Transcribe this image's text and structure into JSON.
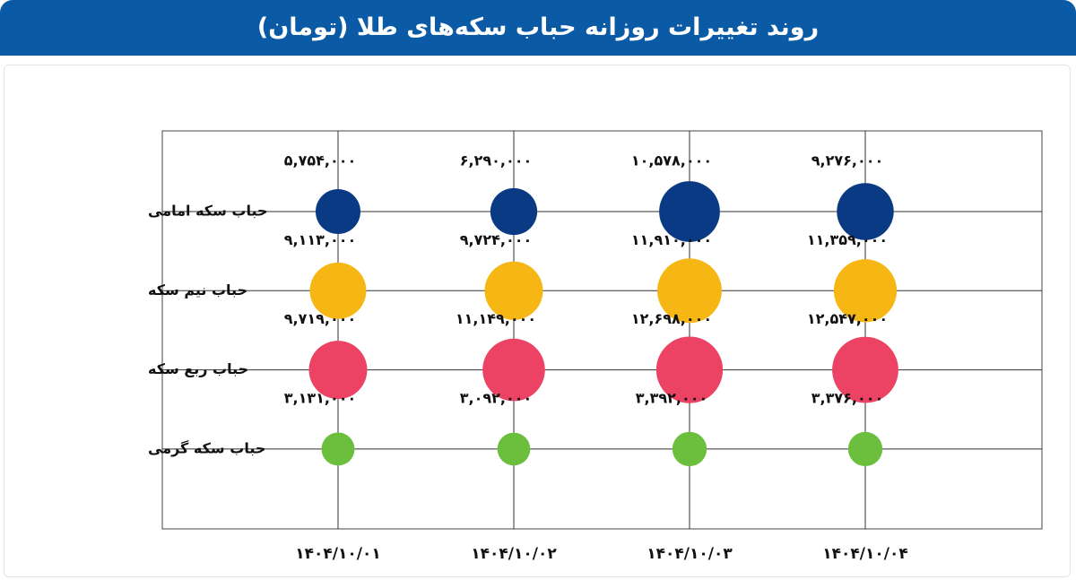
{
  "chart_data": {
    "type": "bubble",
    "title": "روند تغییرات روزانه حباب سکه‌های طلا (تومان)",
    "categories": [
      "۱۴۰۴/۱۰/۰۱",
      "۱۴۰۴/۱۰/۰۲",
      "۱۴۰۴/۱۰/۰۳",
      "۱۴۰۴/۱۰/۰۴"
    ],
    "series": [
      {
        "name": "حباب سکه امامی",
        "color": "#0b3a85",
        "values": [
          5754000,
          6290000,
          10578000,
          9276000
        ],
        "value_labels": [
          "۵,۷۵۴,۰۰۰",
          "۶,۲۹۰,۰۰۰",
          "۱۰,۵۷۸,۰۰۰",
          "۹,۲۷۶,۰۰۰"
        ]
      },
      {
        "name": "حباب نیم سکه",
        "color": "#f6b715",
        "values": [
          9113000,
          9724000,
          11910000,
          11359000
        ],
        "value_labels": [
          "۹,۱۱۳,۰۰۰",
          "۹,۷۲۴,۰۰۰",
          "۱۱,۹۱۰,۰۰۰",
          "۱۱,۳۵۹,۰۰۰"
        ]
      },
      {
        "name": "حباب ربع سکه",
        "color": "#ec4263",
        "values": [
          9719000,
          11149000,
          12698000,
          12547000
        ],
        "value_labels": [
          "۹,۷۱۹,۰۰۰",
          "۱۱,۱۴۹,۰۰۰",
          "۱۲,۶۹۸,۰۰۰",
          "۱۲,۵۴۷,۰۰۰"
        ]
      },
      {
        "name": "حباب سکه گرمی",
        "color": "#6cbf3c",
        "values": [
          3131000,
          3092000,
          3392000,
          3376000
        ],
        "value_labels": [
          "۳,۱۳۱,۰۰۰",
          "۳,۰۹۲,۰۰۰",
          "۳,۳۹۲,۰۰۰",
          "۳,۳۷۶,۰۰۰"
        ]
      }
    ]
  }
}
